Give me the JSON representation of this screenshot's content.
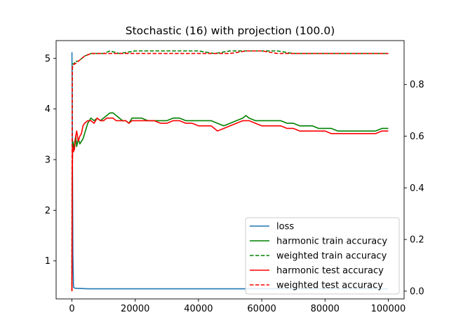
{
  "chart_data": {
    "type": "line",
    "title": "Stochastic (16) with projection (100.0)",
    "xlabel": "",
    "ylabel_left": "",
    "ylabel_right": "",
    "xlim": [
      -5000,
      105000
    ],
    "ylim_left": [
      0.25,
      5.35
    ],
    "ylim_right": [
      -0.03,
      0.97
    ],
    "x_ticks": [
      0,
      20000,
      40000,
      60000,
      80000,
      100000
    ],
    "x_tick_labels": [
      "0",
      "20000",
      "40000",
      "60000",
      "80000",
      "100000"
    ],
    "y_left_ticks": [
      1,
      2,
      3,
      4,
      5
    ],
    "y_left_tick_labels": [
      "1",
      "2",
      "3",
      "4",
      "5"
    ],
    "y_right_ticks": [
      0.0,
      0.2,
      0.4,
      0.6,
      0.8
    ],
    "y_right_tick_labels": [
      "0.0",
      "0.2",
      "0.4",
      "0.6",
      "0.8"
    ],
    "grid": false,
    "legend_position": "lower-right",
    "series": [
      {
        "name": "loss",
        "axis": "left",
        "color": "#1f77b4",
        "dash": "solid",
        "x": [
          0,
          60,
          120,
          200,
          300,
          500,
          1000,
          5000,
          20000,
          50000,
          100000
        ],
        "y": [
          5.12,
          4.5,
          3.6,
          2.4,
          1.1,
          0.48,
          0.46,
          0.45,
          0.45,
          0.45,
          0.45
        ]
      },
      {
        "name": "harmonic train accuracy",
        "axis": "right",
        "color": "#008000",
        "dash": "solid",
        "x": [
          0,
          50,
          100,
          200,
          300,
          500,
          800,
          1200,
          1500,
          2000,
          2500,
          3000,
          3500,
          4000,
          5000,
          6000,
          7000,
          8000,
          9000,
          10000,
          11000,
          12000,
          13000,
          14000,
          15000,
          16000,
          17000,
          18000,
          19000,
          20000,
          22000,
          24000,
          26000,
          28000,
          30000,
          32000,
          34000,
          36000,
          38000,
          40000,
          42000,
          44000,
          46000,
          48000,
          50000,
          52000,
          54000,
          55000,
          56000,
          58000,
          60000,
          62000,
          64000,
          66000,
          68000,
          70000,
          72000,
          74000,
          76000,
          78000,
          80000,
          82000,
          84000,
          86000,
          88000,
          90000,
          92000,
          94000,
          96000,
          98000,
          100000
        ],
        "y": [
          0.0,
          0.22,
          0.45,
          0.56,
          0.58,
          0.55,
          0.57,
          0.6,
          0.56,
          0.59,
          0.57,
          0.58,
          0.59,
          0.61,
          0.65,
          0.67,
          0.66,
          0.67,
          0.66,
          0.67,
          0.68,
          0.69,
          0.69,
          0.68,
          0.67,
          0.66,
          0.66,
          0.65,
          0.67,
          0.67,
          0.67,
          0.66,
          0.66,
          0.66,
          0.66,
          0.67,
          0.67,
          0.66,
          0.66,
          0.66,
          0.66,
          0.66,
          0.65,
          0.64,
          0.65,
          0.66,
          0.67,
          0.68,
          0.67,
          0.66,
          0.66,
          0.66,
          0.66,
          0.66,
          0.65,
          0.65,
          0.64,
          0.64,
          0.64,
          0.63,
          0.63,
          0.63,
          0.62,
          0.62,
          0.62,
          0.62,
          0.62,
          0.62,
          0.62,
          0.63,
          0.63
        ]
      },
      {
        "name": "weighted train accuracy",
        "axis": "right",
        "color": "#008000",
        "dash": "dashed",
        "x": [
          0,
          50,
          100,
          200,
          400,
          700,
          1000,
          2000,
          3000,
          4000,
          6000,
          8000,
          10000,
          12000,
          15000,
          20000,
          25000,
          30000,
          35000,
          40000,
          45000,
          50000,
          55000,
          60000,
          65000,
          70000,
          75000,
          80000,
          85000,
          90000,
          95000,
          100000
        ],
        "y": [
          0.0,
          0.5,
          0.85,
          0.88,
          0.88,
          0.88,
          0.89,
          0.89,
          0.9,
          0.91,
          0.92,
          0.92,
          0.92,
          0.93,
          0.92,
          0.93,
          0.93,
          0.93,
          0.93,
          0.93,
          0.92,
          0.93,
          0.93,
          0.93,
          0.93,
          0.92,
          0.92,
          0.92,
          0.92,
          0.92,
          0.92,
          0.92
        ]
      },
      {
        "name": "harmonic test accuracy",
        "axis": "right",
        "color": "#ff0000",
        "dash": "solid",
        "x": [
          0,
          50,
          100,
          200,
          300,
          500,
          800,
          1200,
          1500,
          2000,
          2500,
          3000,
          3500,
          4000,
          5000,
          6000,
          7000,
          8000,
          9000,
          10000,
          11000,
          12000,
          13000,
          14000,
          15000,
          16000,
          17000,
          18000,
          19000,
          20000,
          22000,
          24000,
          26000,
          28000,
          30000,
          32000,
          34000,
          36000,
          38000,
          40000,
          42000,
          44000,
          46000,
          48000,
          50000,
          52000,
          54000,
          55000,
          56000,
          58000,
          60000,
          62000,
          64000,
          66000,
          68000,
          70000,
          72000,
          74000,
          76000,
          78000,
          80000,
          82000,
          84000,
          86000,
          88000,
          90000,
          92000,
          94000,
          96000,
          98000,
          100000
        ],
        "y": [
          0.0,
          0.2,
          0.44,
          0.55,
          0.56,
          0.54,
          0.55,
          0.6,
          0.62,
          0.58,
          0.6,
          0.61,
          0.64,
          0.65,
          0.66,
          0.66,
          0.65,
          0.67,
          0.66,
          0.66,
          0.67,
          0.67,
          0.67,
          0.66,
          0.66,
          0.66,
          0.66,
          0.65,
          0.66,
          0.66,
          0.66,
          0.66,
          0.66,
          0.65,
          0.65,
          0.66,
          0.66,
          0.65,
          0.65,
          0.64,
          0.64,
          0.64,
          0.62,
          0.63,
          0.64,
          0.65,
          0.66,
          0.66,
          0.66,
          0.65,
          0.64,
          0.64,
          0.64,
          0.64,
          0.63,
          0.63,
          0.62,
          0.62,
          0.62,
          0.62,
          0.62,
          0.61,
          0.61,
          0.61,
          0.61,
          0.61,
          0.61,
          0.61,
          0.61,
          0.62,
          0.62
        ]
      },
      {
        "name": "weighted test accuracy",
        "axis": "right",
        "color": "#ff0000",
        "dash": "dashed",
        "x": [
          0,
          50,
          100,
          200,
          400,
          700,
          1000,
          2000,
          3000,
          4000,
          6000,
          8000,
          10000,
          12000,
          15000,
          20000,
          25000,
          30000,
          35000,
          40000,
          45000,
          50000,
          55000,
          60000,
          65000,
          70000,
          75000,
          80000,
          85000,
          90000,
          95000,
          100000
        ],
        "y": [
          0.0,
          0.5,
          0.85,
          0.87,
          0.87,
          0.88,
          0.88,
          0.89,
          0.9,
          0.91,
          0.92,
          0.92,
          0.92,
          0.92,
          0.92,
          0.92,
          0.92,
          0.92,
          0.92,
          0.92,
          0.92,
          0.92,
          0.93,
          0.93,
          0.92,
          0.92,
          0.92,
          0.92,
          0.92,
          0.92,
          0.92,
          0.92
        ]
      }
    ]
  }
}
